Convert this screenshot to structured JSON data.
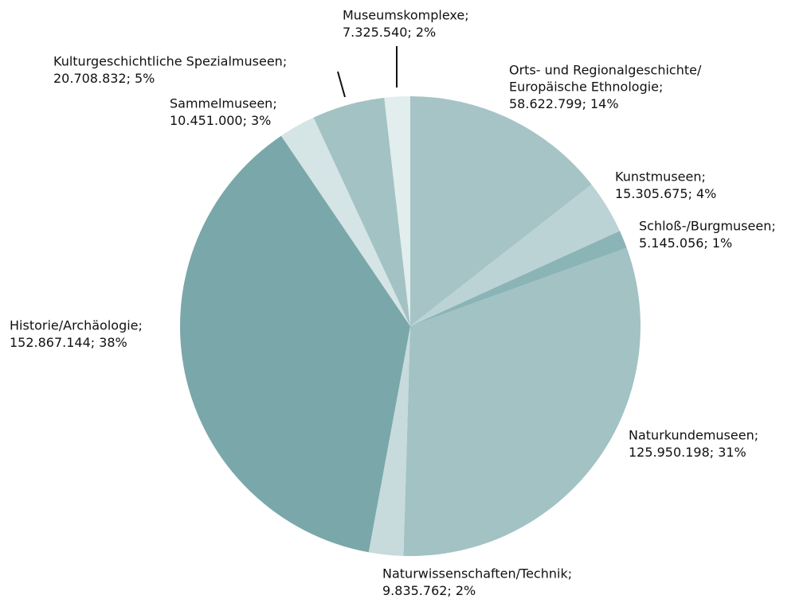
{
  "chart_data": {
    "type": "pie",
    "categories": [
      [
        "Orts- und Regionalgeschichte/",
        "Europäische Ethnologie;"
      ],
      "Kunstmuseen;",
      "Schloß-/Burgmuseen;",
      "Naturkundemuseen;",
      "Naturwissenschaften/Technik;",
      "Historie/Archäologie;",
      "Sammelmuseen;",
      "Kulturgeschichtliche Spezialmuseen;",
      "Museumskomplexe;"
    ],
    "values": [
      58622799,
      15305675,
      5145056,
      125950198,
      9835762,
      152867144,
      10451000,
      20708832,
      7325540
    ],
    "value_labels": [
      "58.622.799;",
      "15.305.675;",
      "5.145.056;",
      "125.950.198;",
      "9.835.762;",
      "152.867.144;",
      "10.451.000;",
      "20.708.832;",
      "7.325.540;"
    ],
    "percentages": [
      14,
      4,
      1,
      31,
      2,
      38,
      3,
      5,
      2
    ],
    "percentage_labels": [
      "14%",
      "4%",
      "1%",
      "31%",
      "2%",
      "38%",
      "3%",
      "5%",
      "2%"
    ],
    "colors": [
      "#a6c4c6",
      "#bcd3d5",
      "#8bb4b7",
      "#a2c2c4",
      "#c7dadc",
      "#7aa7aa",
      "#d5e4e5",
      "#a3c2c3",
      "#e2eded"
    ]
  }
}
